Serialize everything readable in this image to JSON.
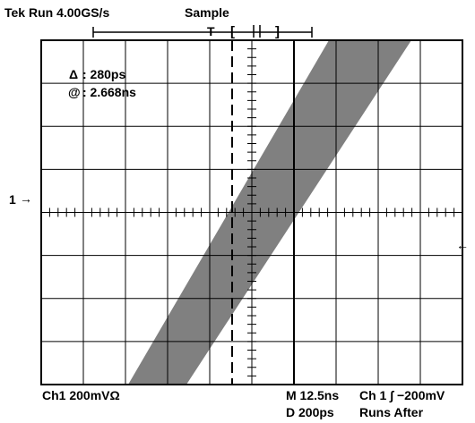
{
  "status": {
    "run_state": "Tek Run 4.00GS/s",
    "acquisition_mode": "Sample"
  },
  "record_bar": {
    "trigger_marker": "T",
    "left_bracket": "[",
    "right_bracket": "]"
  },
  "cursor_readout": {
    "delta_symbol": "Δ",
    "delta_value": ": 280ps",
    "at_symbol": "@",
    "at_value": ": 2.668ns"
  },
  "channel_marker": {
    "label": "1",
    "arrow": "→"
  },
  "trigger_level_arrow": "←",
  "bottom_bar": {
    "channel_scale": "Ch1  200mVΩ",
    "main_timebase": "M 12.5ns",
    "delayed_timebase": "D  200ps",
    "trigger_setting": "Ch 1 ∫ −200mV",
    "trigger_mode": "Runs After"
  },
  "colors": {
    "background": "#ffffff",
    "graticule": "#000000",
    "waveform_band": "#808080"
  }
}
